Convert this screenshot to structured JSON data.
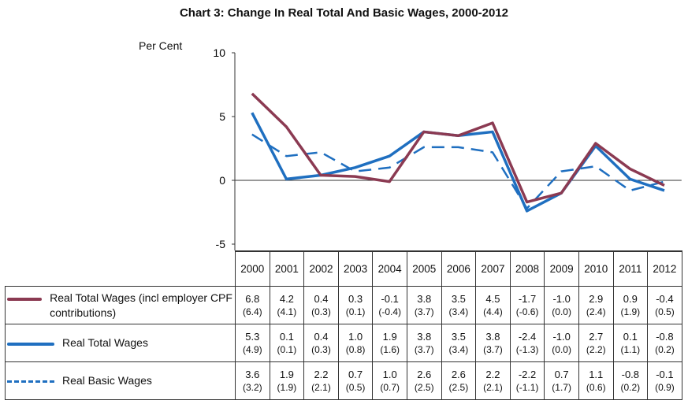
{
  "chart_data": {
    "type": "line",
    "title": "Chart 3: Change In Real Total And Basic Wages, 2000-2012",
    "ylabel": "Per Cent",
    "ylim": [
      -5,
      10
    ],
    "yticks": [
      10,
      5,
      0,
      -5
    ],
    "categories": [
      "2000",
      "2001",
      "2002",
      "2003",
      "2004",
      "2005",
      "2006",
      "2007",
      "2008",
      "2009",
      "2010",
      "2011",
      "2012"
    ],
    "series": [
      {
        "name": "Real Total Wages (incl employer CPF contributions)",
        "color": "#8B3A52",
        "dash": false,
        "values": [
          6.8,
          4.2,
          0.4,
          0.3,
          -0.1,
          3.8,
          3.5,
          4.5,
          -1.7,
          -1.0,
          2.9,
          0.9,
          -0.4
        ],
        "sub": [
          "(6.4)",
          "(4.1)",
          "(0.3)",
          "(0.1)",
          "(-0.4)",
          "(3.7)",
          "(3.4)",
          "(4.4)",
          "(-0.6)",
          "(0.0)",
          "(2.4)",
          "(1.9)",
          "(0.5)"
        ]
      },
      {
        "name": "Real Total Wages",
        "color": "#1F6FC0",
        "dash": false,
        "values": [
          5.3,
          0.1,
          0.4,
          1.0,
          1.9,
          3.8,
          3.5,
          3.8,
          -2.4,
          -1.0,
          2.7,
          0.1,
          -0.8
        ],
        "sub": [
          "(4.9)",
          "(0.1)",
          "(0.3)",
          "(0.8)",
          "(1.6)",
          "(3.7)",
          "(3.4)",
          "(3.7)",
          "(-1.3)",
          "(0.0)",
          "(2.2)",
          "(1.1)",
          "(0.2)"
        ]
      },
      {
        "name": "Real Basic Wages",
        "color": "#1F6FC0",
        "dash": true,
        "values": [
          3.6,
          1.9,
          2.2,
          0.7,
          1.0,
          2.6,
          2.6,
          2.2,
          -2.2,
          0.7,
          1.1,
          -0.8,
          -0.1
        ],
        "sub": [
          "(3.2)",
          "(1.9)",
          "(2.1)",
          "(0.5)",
          "(0.7)",
          "(2.5)",
          "(2.5)",
          "(2.1)",
          "(-1.1)",
          "(1.7)",
          "(0.6)",
          "(0.2)",
          "(0.9)"
        ]
      }
    ]
  }
}
